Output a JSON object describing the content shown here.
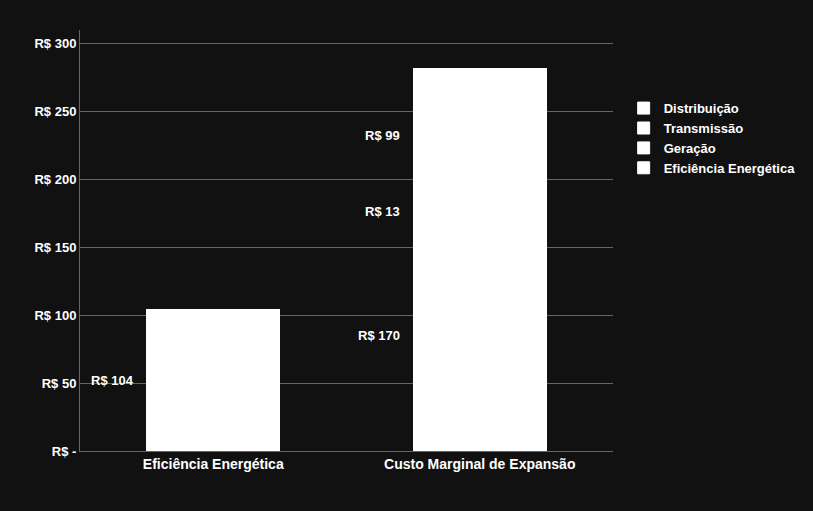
{
  "chart_data": {
    "type": "bar",
    "stacked": true,
    "categories": [
      "Eficiência Energética",
      "Custo Marginal de Expansão"
    ],
    "series": [
      {
        "name": "Distribuição",
        "color": "#ffffff",
        "values": [
          null,
          170
        ],
        "value_labels": [
          null,
          "R$ 170"
        ]
      },
      {
        "name": "Transmissão",
        "color": "#ffffff",
        "values": [
          null,
          13
        ],
        "value_labels": [
          null,
          "R$ 13"
        ]
      },
      {
        "name": "Geração",
        "color": "#ffffff",
        "values": [
          null,
          99
        ],
        "value_labels": [
          null,
          "R$ 99"
        ]
      },
      {
        "name": "Eficiência Energética",
        "color": "#ffffff",
        "values": [
          104,
          null
        ],
        "value_labels": [
          "R$ 104",
          null
        ]
      }
    ],
    "data_labels": true,
    "ylim": [
      0,
      310
    ],
    "yticks": [
      {
        "value": 0,
        "label": "R$ -"
      },
      {
        "value": 50,
        "label": "R$ 50"
      },
      {
        "value": 100,
        "label": "R$ 100"
      },
      {
        "value": 150,
        "label": "R$ 150"
      },
      {
        "value": 200,
        "label": "R$ 200"
      },
      {
        "value": 250,
        "label": "R$ 250"
      },
      {
        "value": 300,
        "label": "R$ 300"
      }
    ],
    "grid": true,
    "legend": "right"
  }
}
